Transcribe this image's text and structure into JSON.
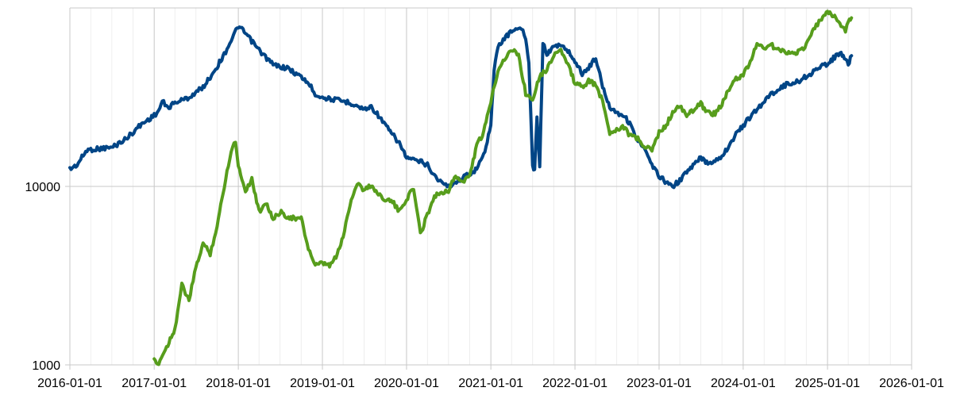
{
  "chart_data": {
    "type": "line",
    "title": "",
    "xlabel": "",
    "ylabel": "",
    "yscale": "log",
    "ylim": [
      1000,
      100000
    ],
    "xlim": [
      "2016-01-01",
      "2026-01-01"
    ],
    "grid": true,
    "legend": "none",
    "x_ticks": [
      "2016-01-01",
      "2017-01-01",
      "2018-01-01",
      "2019-01-01",
      "2020-01-01",
      "2021-01-01",
      "2022-01-01",
      "2023-01-01",
      "2024-01-01",
      "2025-01-01",
      "2026-01-01"
    ],
    "y_ticks": [
      {
        "value": 1000,
        "label": "1000"
      },
      {
        "value": 10000,
        "label": "10000"
      }
    ],
    "series": [
      {
        "color": "#004586",
        "points": [
          [
            "2016-01-01",
            12500
          ],
          [
            "2016-02-01",
            13200
          ],
          [
            "2016-03-15",
            16000
          ],
          [
            "2016-06-01",
            16400
          ],
          [
            "2016-07-01",
            16500
          ],
          [
            "2016-09-01",
            18500
          ],
          [
            "2016-11-01",
            22000
          ],
          [
            "2017-01-01",
            25000
          ],
          [
            "2017-01-20",
            26500
          ],
          [
            "2017-02-05",
            30000
          ],
          [
            "2017-03-01",
            27500
          ],
          [
            "2017-04-01",
            29500
          ],
          [
            "2017-06-01",
            31500
          ],
          [
            "2017-08-01",
            36000
          ],
          [
            "2017-09-01",
            41000
          ],
          [
            "2017-10-01",
            47000
          ],
          [
            "2017-11-01",
            55000
          ],
          [
            "2017-12-01",
            66000
          ],
          [
            "2018-01-01",
            79000
          ],
          [
            "2018-02-01",
            72000
          ],
          [
            "2018-04-01",
            58000
          ],
          [
            "2018-06-01",
            48000
          ],
          [
            "2018-08-01",
            46000
          ],
          [
            "2018-10-01",
            41000
          ],
          [
            "2018-11-01",
            38000
          ],
          [
            "2018-12-01",
            33000
          ],
          [
            "2019-01-01",
            31500
          ],
          [
            "2019-03-01",
            30500
          ],
          [
            "2019-05-01",
            29500
          ],
          [
            "2019-07-01",
            27000
          ],
          [
            "2019-08-01",
            28000
          ],
          [
            "2019-09-01",
            25000
          ],
          [
            "2019-10-01",
            22000
          ],
          [
            "2019-11-01",
            19500
          ],
          [
            "2019-12-01",
            17500
          ],
          [
            "2020-01-01",
            14500
          ],
          [
            "2020-02-01",
            14000
          ],
          [
            "2020-03-01",
            13800
          ],
          [
            "2020-04-01",
            13200
          ],
          [
            "2020-05-01",
            11500
          ],
          [
            "2020-06-01",
            10500
          ],
          [
            "2020-07-01",
            10000
          ],
          [
            "2020-09-01",
            11200
          ],
          [
            "2020-10-01",
            11800
          ],
          [
            "2020-11-01",
            12500
          ],
          [
            "2020-12-01",
            15000
          ],
          [
            "2021-01-01",
            22000
          ],
          [
            "2021-01-15",
            45000
          ],
          [
            "2021-02-01",
            60000
          ],
          [
            "2021-03-01",
            68000
          ],
          [
            "2021-04-01",
            74000
          ],
          [
            "2021-05-01",
            78000
          ],
          [
            "2021-05-20",
            74000
          ],
          [
            "2021-06-01",
            66000
          ],
          [
            "2021-06-15",
            50000
          ],
          [
            "2021-07-01",
            13000
          ],
          [
            "2021-07-10",
            12500
          ],
          [
            "2021-07-20",
            25000
          ],
          [
            "2021-08-01",
            13000
          ],
          [
            "2021-08-15",
            65000
          ],
          [
            "2021-09-01",
            55000
          ],
          [
            "2021-09-15",
            57000
          ],
          [
            "2021-10-01",
            62000
          ],
          [
            "2021-11-01",
            61000
          ],
          [
            "2021-12-01",
            58000
          ],
          [
            "2022-01-01",
            50000
          ],
          [
            "2022-02-01",
            43000
          ],
          [
            "2022-03-01",
            46000
          ],
          [
            "2022-04-01",
            53000
          ],
          [
            "2022-05-01",
            36000
          ],
          [
            "2022-06-01",
            28000
          ],
          [
            "2022-07-01",
            26000
          ],
          [
            "2022-08-01",
            25000
          ],
          [
            "2022-09-01",
            22000
          ],
          [
            "2022-10-01",
            18000
          ],
          [
            "2022-11-01",
            16000
          ],
          [
            "2022-12-01",
            13000
          ],
          [
            "2023-01-01",
            11500
          ],
          [
            "2023-02-01",
            10500
          ],
          [
            "2023-03-01",
            10000
          ],
          [
            "2023-04-01",
            10800
          ],
          [
            "2023-05-01",
            12000
          ],
          [
            "2023-07-01",
            14500
          ],
          [
            "2023-08-01",
            13500
          ],
          [
            "2023-09-01",
            14000
          ],
          [
            "2023-10-01",
            14800
          ],
          [
            "2023-11-01",
            17000
          ],
          [
            "2023-12-01",
            19500
          ],
          [
            "2024-01-01",
            22000
          ],
          [
            "2024-03-01",
            27000
          ],
          [
            "2024-05-01",
            33000
          ],
          [
            "2024-07-01",
            37000
          ],
          [
            "2024-09-01",
            39000
          ],
          [
            "2024-11-01",
            44000
          ],
          [
            "2025-01-01",
            49000
          ],
          [
            "2025-02-01",
            53000
          ],
          [
            "2025-03-01",
            56000
          ],
          [
            "2025-03-15",
            52000
          ],
          [
            "2025-04-01",
            48000
          ],
          [
            "2025-04-15",
            54000
          ]
        ]
      },
      {
        "color": "#579D1C",
        "points": [
          [
            "2017-01-01",
            1050
          ],
          [
            "2017-01-15",
            1000
          ],
          [
            "2017-02-01",
            1100
          ],
          [
            "2017-03-01",
            1300
          ],
          [
            "2017-04-01",
            1600
          ],
          [
            "2017-05-01",
            2800
          ],
          [
            "2017-06-01",
            2300
          ],
          [
            "2017-07-01",
            3500
          ],
          [
            "2017-08-01",
            4800
          ],
          [
            "2017-09-01",
            4200
          ],
          [
            "2017-10-01",
            6000
          ],
          [
            "2017-11-01",
            10000
          ],
          [
            "2017-12-01",
            16000
          ],
          [
            "2017-12-20",
            18000
          ],
          [
            "2018-01-01",
            13000
          ],
          [
            "2018-02-01",
            9500
          ],
          [
            "2018-03-01",
            11000
          ],
          [
            "2018-04-01",
            7200
          ],
          [
            "2018-05-01",
            8200
          ],
          [
            "2018-06-01",
            6500
          ],
          [
            "2018-07-01",
            7200
          ],
          [
            "2018-08-01",
            6800
          ],
          [
            "2018-09-01",
            6600
          ],
          [
            "2018-10-01",
            6600
          ],
          [
            "2018-11-01",
            4500
          ],
          [
            "2018-12-01",
            3600
          ],
          [
            "2019-01-01",
            3700
          ],
          [
            "2019-02-01",
            3600
          ],
          [
            "2019-03-01",
            4000
          ],
          [
            "2019-04-01",
            5200
          ],
          [
            "2019-05-01",
            8000
          ],
          [
            "2019-06-01",
            10500
          ],
          [
            "2019-07-01",
            9500
          ],
          [
            "2019-08-01",
            10200
          ],
          [
            "2019-09-01",
            9000
          ],
          [
            "2019-10-01",
            8500
          ],
          [
            "2019-11-01",
            8200
          ],
          [
            "2019-12-01",
            7200
          ],
          [
            "2020-01-01",
            8500
          ],
          [
            "2020-02-01",
            9800
          ],
          [
            "2020-03-01",
            5400
          ],
          [
            "2020-04-01",
            7000
          ],
          [
            "2020-05-01",
            8800
          ],
          [
            "2020-06-01",
            9300
          ],
          [
            "2020-07-01",
            9500
          ],
          [
            "2020-08-01",
            11500
          ],
          [
            "2020-09-01",
            10500
          ],
          [
            "2020-10-01",
            11500
          ],
          [
            "2020-11-01",
            17000
          ],
          [
            "2020-12-01",
            20000
          ],
          [
            "2021-01-01",
            30000
          ],
          [
            "2021-02-01",
            45000
          ],
          [
            "2021-03-01",
            52000
          ],
          [
            "2021-04-01",
            58000
          ],
          [
            "2021-05-01",
            55000
          ],
          [
            "2021-06-01",
            33000
          ],
          [
            "2021-07-01",
            31000
          ],
          [
            "2021-08-01",
            42000
          ],
          [
            "2021-09-01",
            45000
          ],
          [
            "2021-10-01",
            55000
          ],
          [
            "2021-11-01",
            58000
          ],
          [
            "2021-12-01",
            48000
          ],
          [
            "2022-01-01",
            38000
          ],
          [
            "2022-02-01",
            36000
          ],
          [
            "2022-03-01",
            39000
          ],
          [
            "2022-04-01",
            37000
          ],
          [
            "2022-05-01",
            30000
          ],
          [
            "2022-06-01",
            20000
          ],
          [
            "2022-07-01",
            21000
          ],
          [
            "2022-08-01",
            21500
          ],
          [
            "2022-09-01",
            19000
          ],
          [
            "2022-10-01",
            18500
          ],
          [
            "2022-11-01",
            16500
          ],
          [
            "2022-12-01",
            16000
          ],
          [
            "2023-01-01",
            20000
          ],
          [
            "2023-02-01",
            22000
          ],
          [
            "2023-03-01",
            26000
          ],
          [
            "2023-04-01",
            28000
          ],
          [
            "2023-05-01",
            25000
          ],
          [
            "2023-06-01",
            27000
          ],
          [
            "2023-07-01",
            29000
          ],
          [
            "2023-08-01",
            26000
          ],
          [
            "2023-09-01",
            25500
          ],
          [
            "2023-10-01",
            29000
          ],
          [
            "2023-11-01",
            35000
          ],
          [
            "2023-12-01",
            40000
          ],
          [
            "2024-01-01",
            42000
          ],
          [
            "2024-02-01",
            50000
          ],
          [
            "2024-03-01",
            63000
          ],
          [
            "2024-04-01",
            60000
          ],
          [
            "2024-05-01",
            62000
          ],
          [
            "2024-06-01",
            58000
          ],
          [
            "2024-07-01",
            57000
          ],
          [
            "2024-08-01",
            56000
          ],
          [
            "2024-09-01",
            57000
          ],
          [
            "2024-10-01",
            62000
          ],
          [
            "2024-11-01",
            75000
          ],
          [
            "2024-12-01",
            86000
          ],
          [
            "2025-01-01",
            94000
          ],
          [
            "2025-02-01",
            90000
          ],
          [
            "2025-03-01",
            80000
          ],
          [
            "2025-03-20",
            75000
          ],
          [
            "2025-04-01",
            83000
          ],
          [
            "2025-04-15",
            88000
          ]
        ]
      }
    ]
  }
}
